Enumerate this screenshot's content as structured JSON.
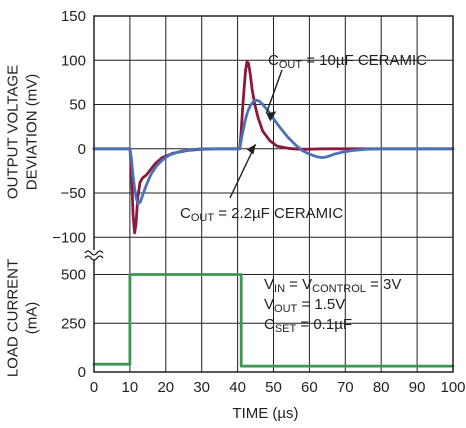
{
  "chart_data": {
    "type": "line",
    "panels": [
      {
        "id": "output_voltage",
        "ylabel_line1": "OUTPUT VOLTAGE",
        "ylabel_line2": "DEVIATION (mV)",
        "ylim": [
          -120,
          150
        ],
        "yticks": [
          "150",
          "100",
          "50",
          "0",
          "−50",
          "−100"
        ],
        "ytick_values": [
          150,
          100,
          50,
          0,
          -50,
          -100
        ],
        "grid": true,
        "series": [
          {
            "name": "COUT = 2.2µF CERAMIC",
            "color": "#8b1a3a",
            "x": [
              0,
              9.5,
              10,
              10.3,
              10.6,
              10.9,
              11.3,
              11.7,
              12.2,
              12.8,
              13.5,
              14.5,
              15.5,
              17,
              19,
              22,
              26,
              30,
              34,
              38,
              40.6,
              41,
              41.4,
              41.8,
              42.2,
              42.6,
              43,
              43.5,
              44,
              44.8,
              45.7,
              47,
              49,
              51,
              54,
              57,
              60,
              64,
              70,
              80,
              100
            ],
            "y": [
              0,
              0,
              0,
              -15,
              -45,
              -75,
              -95,
              -85,
              -55,
              -38,
              -33,
              -30,
              -25,
              -17,
              -10,
              -5,
              -2,
              -0.5,
              0,
              0,
              0,
              20,
              45,
              68,
              88,
              98,
              97,
              85,
              68,
              50,
              35,
              20,
              9,
              3,
              0.5,
              -0.5,
              -0.5,
              0,
              0,
              0,
              0
            ]
          },
          {
            "name": "COUT = 10µF CERAMIC",
            "color": "#4a72b8",
            "x": [
              0,
              9.5,
              10,
              10.4,
              10.8,
              11.3,
              11.8,
              12.3,
              12.9,
              13.5,
              14.2,
              15,
              16,
              17.5,
              19,
              21,
              24,
              27,
              30,
              34,
              38,
              40.6,
              41,
              41.5,
              42,
              42.5,
              43,
              43.6,
              44.3,
              45,
              46,
              47,
              48.5,
              50,
              52,
              54,
              56,
              58,
              60,
              62,
              63.5,
              65,
              67,
              69,
              72,
              76,
              80,
              90,
              100
            ],
            "y": [
              0,
              0,
              0,
              -10,
              -28,
              -45,
              -57,
              -62,
              -60,
              -53,
              -45,
              -37,
              -28,
              -19,
              -13,
              -7,
              -3,
              -1,
              0,
              0,
              0,
              0,
              10,
              20,
              30,
              38,
              44,
              49,
              53,
              55,
              54,
              50,
              43,
              34,
              23,
              13,
              5,
              -2,
              -6,
              -9,
              -10,
              -9,
              -6,
              -4,
              -2,
              -0.5,
              0,
              0,
              0
            ]
          }
        ],
        "annotations": [
          {
            "prefix": "C",
            "sub": "OUT",
            "rest": " = 10µF CERAMIC",
            "target_series": 1
          },
          {
            "prefix": "C",
            "sub": "OUT",
            "rest": " = 2.2µF CERAMIC",
            "target_series": 0
          }
        ]
      },
      {
        "id": "load_current",
        "ylabel_line1": "LOAD CURRENT",
        "ylabel_line2": "(mA)",
        "ylim": [
          0,
          600
        ],
        "yticks": [
          "500",
          "250",
          "0"
        ],
        "ytick_values": [
          500,
          250,
          0
        ],
        "grid": true,
        "series": [
          {
            "name": "LOAD CURRENT",
            "color": "#3a9650",
            "x": [
              0,
              10,
              10,
              41,
              41,
              100
            ],
            "y": [
              40,
              40,
              500,
              500,
              30,
              30
            ]
          }
        ],
        "conditions": [
          {
            "parts": [
              [
                "V",
                ""
              ],
              [
                "IN",
                "sub"
              ],
              [
                " = V",
                ""
              ],
              [
                "CONTROL",
                "sub"
              ],
              [
                " = 3V",
                ""
              ]
            ]
          },
          {
            "parts": [
              [
                "V",
                ""
              ],
              [
                "OUT",
                "sub"
              ],
              [
                " = 1.5V",
                ""
              ]
            ]
          },
          {
            "parts": [
              [
                "C",
                ""
              ],
              [
                "SET",
                "sub"
              ],
              [
                " = 0.1µF",
                ""
              ]
            ]
          }
        ]
      }
    ],
    "x": {
      "label": "TIME (µs)",
      "xlim": [
        0,
        100
      ],
      "ticks": [
        "0",
        "10",
        "20",
        "30",
        "40",
        "50",
        "60",
        "70",
        "80",
        "90",
        "100"
      ],
      "tick_values": [
        0,
        10,
        20,
        30,
        40,
        50,
        60,
        70,
        80,
        90,
        100
      ]
    }
  }
}
